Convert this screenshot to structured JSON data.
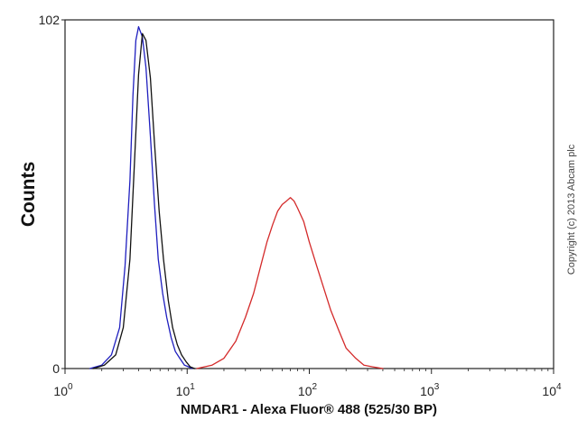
{
  "chart_data": {
    "type": "line",
    "title": "",
    "xlabel": "NMDAR1 - Alexa Fluor® 488 (525/30 BP)",
    "ylabel": "Counts",
    "x_scale": "log",
    "xlim": [
      1,
      10000
    ],
    "ylim": [
      0,
      102
    ],
    "x_ticks": [
      {
        "value": 1,
        "base": "10",
        "exp": "0"
      },
      {
        "value": 10,
        "base": "10",
        "exp": "1"
      },
      {
        "value": 100,
        "base": "10",
        "exp": "2"
      },
      {
        "value": 1000,
        "base": "10",
        "exp": "3"
      },
      {
        "value": 10000,
        "base": "10",
        "exp": "4"
      }
    ],
    "y_ticks": [
      {
        "value": 0,
        "label": "0"
      },
      {
        "value": 102,
        "label": "102"
      }
    ],
    "grid": false,
    "legend": "none",
    "series": [
      {
        "color": "#1f1fbf",
        "x": [
          1.6,
          2.0,
          2.4,
          2.8,
          3.1,
          3.4,
          3.6,
          3.8,
          4.0,
          4.3,
          4.6,
          5.0,
          5.4,
          5.8,
          6.3,
          6.8,
          7.4,
          8.0,
          8.7,
          9.5,
          10.3,
          11.0
        ],
        "y": [
          0,
          1,
          4,
          12,
          30,
          55,
          80,
          96,
          100,
          97,
          88,
          68,
          48,
          32,
          22,
          15,
          9,
          5,
          3,
          1,
          0.5,
          0
        ]
      },
      {
        "color": "#111111",
        "x": [
          1.7,
          2.1,
          2.6,
          3.0,
          3.4,
          3.7,
          4.0,
          4.3,
          4.6,
          5.0,
          5.4,
          5.9,
          6.4,
          7.0,
          7.6,
          8.3,
          9.0,
          9.8,
          10.6,
          11.5
        ],
        "y": [
          0,
          1,
          4,
          12,
          32,
          60,
          86,
          98,
          96,
          85,
          66,
          46,
          32,
          20,
          12,
          7,
          4,
          2,
          0.5,
          0
        ]
      },
      {
        "color": "#d42a2a",
        "x": [
          12,
          16,
          20,
          25,
          30,
          35,
          40,
          45,
          50,
          55,
          60,
          65,
          70,
          75,
          80,
          90,
          100,
          115,
          130,
          150,
          175,
          200,
          240,
          280,
          330,
          400
        ],
        "y": [
          0,
          1,
          3,
          8,
          15,
          22,
          30,
          37,
          42,
          46,
          48,
          49,
          50,
          49,
          47,
          43,
          37,
          30,
          24,
          17,
          11,
          6,
          3,
          1,
          0.5,
          0
        ]
      }
    ]
  },
  "copyright_text": "Copyright (c) 2013 Abcam plc"
}
